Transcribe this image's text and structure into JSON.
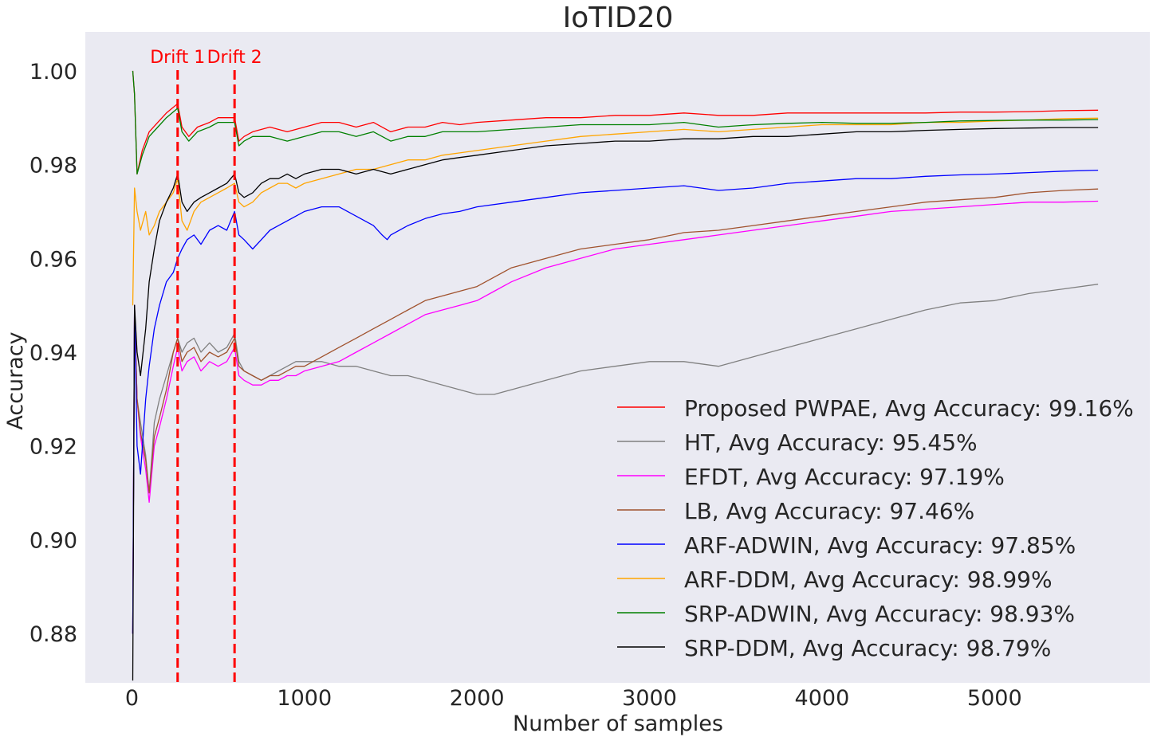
{
  "chart_data": {
    "type": "line",
    "title": "IoTID20",
    "xlabel": "Number of samples",
    "ylabel": "Accuracy",
    "xlim": [
      -270,
      5900
    ],
    "ylim": [
      0.8695,
      1.0083
    ],
    "xticks": [
      0,
      1000,
      2000,
      3000,
      4000,
      5000
    ],
    "yticks": [
      0.88,
      0.9,
      0.92,
      0.94,
      0.96,
      0.98,
      1.0
    ],
    "ytick_labels": [
      "0.88",
      "0.90",
      "0.92",
      "0.94",
      "0.96",
      "0.98",
      "1.00"
    ],
    "grid": false,
    "background": "#eaeaf2",
    "legend_position": "lower-right",
    "drift_lines": [
      {
        "label": "Drift 1",
        "x": 265,
        "color": "#ff0000"
      },
      {
        "label": "Drift 2",
        "x": 595,
        "color": "#ff0000"
      }
    ],
    "series": [
      {
        "name": "Proposed PWPAE, Avg Accuracy: 99.16%",
        "color": "#ff0000",
        "x": [
          5,
          15,
          30,
          60,
          100,
          150,
          200,
          265,
          290,
          330,
          380,
          450,
          500,
          560,
          595,
          620,
          650,
          700,
          800,
          900,
          1000,
          1100,
          1200,
          1300,
          1400,
          1500,
          1600,
          1700,
          1800,
          1900,
          2000,
          2200,
          2400,
          2600,
          2800,
          3000,
          3200,
          3400,
          3600,
          3800,
          4000,
          4200,
          4400,
          4600,
          4800,
          5000,
          5200,
          5400,
          5600
        ],
        "y": [
          1.0,
          0.995,
          0.978,
          0.983,
          0.987,
          0.989,
          0.991,
          0.993,
          0.988,
          0.986,
          0.988,
          0.989,
          0.99,
          0.99,
          0.99,
          0.985,
          0.986,
          0.987,
          0.988,
          0.987,
          0.988,
          0.989,
          0.989,
          0.988,
          0.989,
          0.987,
          0.988,
          0.988,
          0.989,
          0.9885,
          0.989,
          0.9895,
          0.99,
          0.99,
          0.9905,
          0.9905,
          0.991,
          0.9905,
          0.9905,
          0.991,
          0.991,
          0.991,
          0.991,
          0.991,
          0.9912,
          0.9912,
          0.9913,
          0.9915,
          0.9916
        ]
      },
      {
        "name": "HT, Avg Accuracy: 95.45%",
        "color": "#808080",
        "x": [
          5,
          15,
          30,
          50,
          80,
          100,
          130,
          160,
          200,
          240,
          265,
          290,
          320,
          360,
          400,
          450,
          500,
          550,
          595,
          620,
          650,
          700,
          750,
          800,
          850,
          900,
          950,
          1000,
          1100,
          1200,
          1300,
          1400,
          1500,
          1600,
          1700,
          1800,
          1900,
          2000,
          2100,
          2200,
          2400,
          2600,
          2800,
          3000,
          3200,
          3400,
          3600,
          3800,
          4000,
          4200,
          4400,
          4600,
          4800,
          5000,
          5200,
          5400,
          5600
        ],
        "y": [
          0.88,
          0.95,
          0.93,
          0.925,
          0.918,
          0.91,
          0.925,
          0.93,
          0.935,
          0.94,
          0.943,
          0.94,
          0.942,
          0.943,
          0.94,
          0.942,
          0.94,
          0.941,
          0.944,
          0.938,
          0.936,
          0.935,
          0.934,
          0.935,
          0.936,
          0.937,
          0.938,
          0.938,
          0.938,
          0.937,
          0.937,
          0.936,
          0.935,
          0.935,
          0.934,
          0.933,
          0.932,
          0.931,
          0.931,
          0.932,
          0.934,
          0.936,
          0.937,
          0.938,
          0.938,
          0.937,
          0.939,
          0.941,
          0.943,
          0.945,
          0.947,
          0.949,
          0.9505,
          0.951,
          0.9525,
          0.9535,
          0.9545
        ]
      },
      {
        "name": "EFDT, Avg Accuracy: 97.19%",
        "color": "#ff00ff",
        "x": [
          5,
          15,
          30,
          50,
          80,
          100,
          130,
          160,
          200,
          240,
          265,
          290,
          320,
          360,
          400,
          450,
          500,
          550,
          595,
          620,
          650,
          700,
          750,
          800,
          850,
          900,
          950,
          1000,
          1100,
          1200,
          1300,
          1400,
          1500,
          1600,
          1700,
          1800,
          1900,
          2000,
          2100,
          2200,
          2400,
          2600,
          2800,
          3000,
          3200,
          3400,
          3600,
          3800,
          4000,
          4200,
          4400,
          4600,
          4800,
          5000,
          5200,
          5400,
          5600
        ],
        "y": [
          0.88,
          0.95,
          0.93,
          0.922,
          0.915,
          0.908,
          0.92,
          0.924,
          0.93,
          0.937,
          0.941,
          0.936,
          0.938,
          0.939,
          0.936,
          0.938,
          0.937,
          0.938,
          0.941,
          0.935,
          0.934,
          0.933,
          0.933,
          0.934,
          0.934,
          0.935,
          0.935,
          0.936,
          0.937,
          0.938,
          0.94,
          0.942,
          0.944,
          0.946,
          0.948,
          0.949,
          0.95,
          0.951,
          0.953,
          0.955,
          0.958,
          0.96,
          0.962,
          0.963,
          0.964,
          0.965,
          0.966,
          0.967,
          0.968,
          0.969,
          0.97,
          0.9705,
          0.971,
          0.9715,
          0.972,
          0.972,
          0.9722
        ]
      },
      {
        "name": "LB, Avg Accuracy: 97.46%",
        "color": "#a0522d",
        "x": [
          5,
          15,
          30,
          50,
          80,
          100,
          130,
          160,
          200,
          240,
          265,
          290,
          320,
          360,
          400,
          450,
          500,
          550,
          595,
          620,
          650,
          700,
          750,
          800,
          850,
          900,
          950,
          1000,
          1100,
          1200,
          1300,
          1400,
          1500,
          1600,
          1700,
          1800,
          1900,
          2000,
          2100,
          2200,
          2400,
          2600,
          2800,
          3000,
          3200,
          3400,
          3600,
          3800,
          4000,
          4200,
          4400,
          4600,
          4800,
          5000,
          5200,
          5400,
          5600
        ],
        "y": [
          0.88,
          0.95,
          0.93,
          0.923,
          0.917,
          0.91,
          0.922,
          0.926,
          0.932,
          0.94,
          0.943,
          0.938,
          0.94,
          0.941,
          0.938,
          0.94,
          0.939,
          0.94,
          0.943,
          0.937,
          0.936,
          0.935,
          0.934,
          0.935,
          0.935,
          0.936,
          0.937,
          0.937,
          0.939,
          0.941,
          0.943,
          0.945,
          0.947,
          0.949,
          0.951,
          0.952,
          0.953,
          0.954,
          0.956,
          0.958,
          0.96,
          0.962,
          0.963,
          0.964,
          0.9655,
          0.966,
          0.967,
          0.968,
          0.969,
          0.97,
          0.971,
          0.972,
          0.9725,
          0.973,
          0.974,
          0.9745,
          0.9748
        ]
      },
      {
        "name": "ARF-ADWIN, Avg Accuracy: 97.85%",
        "color": "#0000ff",
        "x": [
          5,
          15,
          30,
          50,
          80,
          100,
          130,
          160,
          200,
          240,
          265,
          290,
          320,
          360,
          400,
          450,
          500,
          550,
          595,
          620,
          650,
          700,
          750,
          800,
          850,
          900,
          950,
          1000,
          1100,
          1200,
          1300,
          1400,
          1450,
          1480,
          1500,
          1600,
          1700,
          1800,
          1900,
          2000,
          2200,
          2400,
          2600,
          2800,
          3000,
          3200,
          3400,
          3600,
          3800,
          4000,
          4200,
          4400,
          4600,
          4800,
          5000,
          5200,
          5400,
          5600
        ],
        "y": [
          0.88,
          0.95,
          0.92,
          0.914,
          0.93,
          0.937,
          0.945,
          0.95,
          0.955,
          0.957,
          0.96,
          0.962,
          0.964,
          0.965,
          0.963,
          0.966,
          0.967,
          0.966,
          0.97,
          0.965,
          0.964,
          0.962,
          0.964,
          0.966,
          0.967,
          0.968,
          0.969,
          0.97,
          0.971,
          0.971,
          0.969,
          0.967,
          0.965,
          0.964,
          0.965,
          0.967,
          0.9685,
          0.9695,
          0.97,
          0.971,
          0.972,
          0.973,
          0.974,
          0.9745,
          0.975,
          0.9755,
          0.9745,
          0.975,
          0.976,
          0.9765,
          0.977,
          0.977,
          0.9775,
          0.9778,
          0.978,
          0.9783,
          0.9786,
          0.9788
        ]
      },
      {
        "name": "ARF-DDM, Avg Accuracy: 98.99%",
        "color": "#ffa500",
        "x": [
          5,
          15,
          30,
          50,
          80,
          100,
          130,
          160,
          200,
          240,
          265,
          290,
          320,
          360,
          400,
          450,
          500,
          550,
          595,
          620,
          650,
          700,
          750,
          800,
          850,
          900,
          950,
          1000,
          1100,
          1200,
          1300,
          1400,
          1500,
          1600,
          1700,
          1800,
          1900,
          2000,
          2200,
          2400,
          2600,
          2800,
          3000,
          3200,
          3400,
          3600,
          3800,
          4000,
          4200,
          4400,
          4600,
          4800,
          5000,
          5200,
          5400,
          5600
        ],
        "y": [
          0.95,
          0.975,
          0.97,
          0.966,
          0.97,
          0.965,
          0.967,
          0.97,
          0.972,
          0.974,
          0.977,
          0.968,
          0.966,
          0.97,
          0.972,
          0.973,
          0.974,
          0.975,
          0.976,
          0.972,
          0.971,
          0.972,
          0.974,
          0.975,
          0.976,
          0.976,
          0.975,
          0.976,
          0.977,
          0.978,
          0.979,
          0.979,
          0.98,
          0.981,
          0.981,
          0.982,
          0.9825,
          0.983,
          0.984,
          0.985,
          0.986,
          0.9865,
          0.987,
          0.9875,
          0.987,
          0.9875,
          0.988,
          0.9885,
          0.9885,
          0.9885,
          0.989,
          0.989,
          0.9893,
          0.9895,
          0.9898,
          0.9899
        ]
      },
      {
        "name": "SRP-ADWIN, Avg Accuracy: 98.93%",
        "color": "#008000",
        "x": [
          5,
          15,
          30,
          60,
          100,
          150,
          200,
          265,
          290,
          330,
          380,
          450,
          500,
          560,
          595,
          620,
          650,
          700,
          800,
          900,
          1000,
          1100,
          1200,
          1300,
          1400,
          1500,
          1600,
          1700,
          1800,
          1900,
          2000,
          2200,
          2400,
          2600,
          2800,
          3000,
          3200,
          3400,
          3600,
          3800,
          4000,
          4200,
          4400,
          4600,
          4800,
          5000,
          5200,
          5400,
          5600
        ],
        "y": [
          1.0,
          0.995,
          0.978,
          0.982,
          0.986,
          0.988,
          0.99,
          0.992,
          0.987,
          0.985,
          0.987,
          0.988,
          0.989,
          0.989,
          0.989,
          0.984,
          0.985,
          0.986,
          0.986,
          0.985,
          0.986,
          0.987,
          0.987,
          0.986,
          0.987,
          0.985,
          0.986,
          0.986,
          0.987,
          0.987,
          0.987,
          0.9875,
          0.988,
          0.9885,
          0.9885,
          0.9885,
          0.989,
          0.988,
          0.9885,
          0.9888,
          0.989,
          0.9888,
          0.9888,
          0.989,
          0.9893,
          0.9894,
          0.9895,
          0.9895,
          0.9896
        ]
      },
      {
        "name": "SRP-DDM, Avg Accuracy: 98.79%",
        "color": "#000000",
        "x": [
          5,
          15,
          30,
          50,
          80,
          100,
          130,
          160,
          200,
          240,
          265,
          290,
          320,
          360,
          400,
          450,
          500,
          550,
          595,
          620,
          650,
          700,
          750,
          800,
          850,
          900,
          950,
          1000,
          1100,
          1200,
          1300,
          1400,
          1500,
          1600,
          1700,
          1800,
          1900,
          2000,
          2200,
          2400,
          2600,
          2800,
          3000,
          3200,
          3400,
          3600,
          3800,
          4000,
          4200,
          4400,
          4600,
          4800,
          5000,
          5200,
          5400,
          5600
        ],
        "y": [
          0.87,
          0.95,
          0.94,
          0.935,
          0.945,
          0.955,
          0.962,
          0.968,
          0.972,
          0.975,
          0.978,
          0.972,
          0.97,
          0.972,
          0.973,
          0.974,
          0.975,
          0.976,
          0.978,
          0.974,
          0.973,
          0.974,
          0.976,
          0.977,
          0.977,
          0.978,
          0.977,
          0.978,
          0.979,
          0.979,
          0.978,
          0.979,
          0.978,
          0.979,
          0.98,
          0.981,
          0.9815,
          0.982,
          0.983,
          0.984,
          0.9845,
          0.985,
          0.985,
          0.9855,
          0.9855,
          0.986,
          0.986,
          0.9865,
          0.987,
          0.987,
          0.9873,
          0.9875,
          0.9877,
          0.9878,
          0.9879,
          0.9879
        ]
      }
    ]
  }
}
